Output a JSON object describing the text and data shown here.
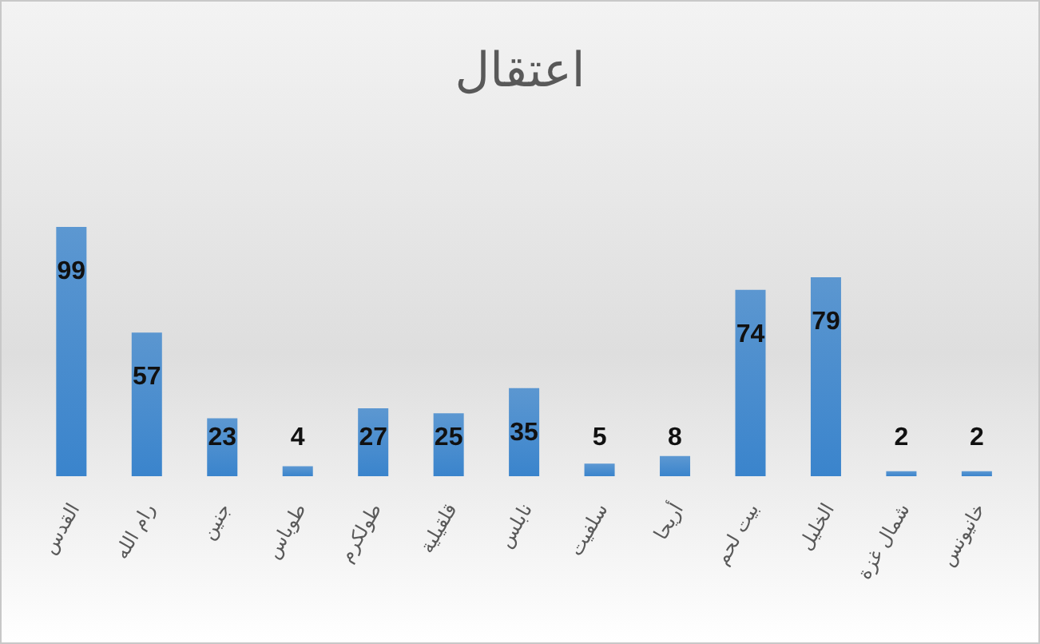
{
  "chart_data": {
    "type": "bar",
    "title": "اعتقال",
    "categories": [
      "القدس",
      "رام الله",
      "جنين",
      "طوباس",
      "طولكرم",
      "قلقيلية",
      "نابلس",
      "سلفيت",
      "أريحا",
      "بيت لحم",
      "الخليل",
      "شمال غزة",
      "خانيونس"
    ],
    "values": [
      99,
      57,
      23,
      4,
      27,
      25,
      35,
      5,
      8,
      74,
      79,
      2,
      2
    ],
    "color": "#3a84cc",
    "data_labels": true,
    "grid": false,
    "legend": false
  }
}
